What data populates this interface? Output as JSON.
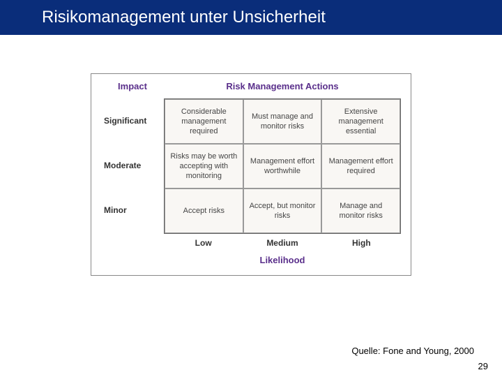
{
  "slide": {
    "title": "Risikomanagement unter Unsicherheit",
    "source": "Quelle: Fone and Young, 2000",
    "page_number": "29",
    "title_bar_bg": "#0a2d7a",
    "title_bar_fg": "#ffffff"
  },
  "matrix": {
    "type": "grid-3x3",
    "impact_label": "Impact",
    "actions_label": "Risk Management Actions",
    "likelihood_label": "Likelihood",
    "header_color": "#5a2f8b",
    "cell_bg": "#f9f7f4",
    "cell_border": "#999999",
    "cell_text_color": "#444444",
    "cell_fontsize": 11,
    "row_labels": [
      "Significant",
      "Moderate",
      "Minor"
    ],
    "col_labels": [
      "Low",
      "Medium",
      "High"
    ],
    "cells": [
      [
        "Considerable management required",
        "Must manage and monitor risks",
        "Extensive management essential"
      ],
      [
        "Risks may be worth accepting with monitoring",
        "Management effort worthwhile",
        "Management effort required"
      ],
      [
        "Accept risks",
        "Accept, but monitor risks",
        "Manage and monitor risks"
      ]
    ]
  }
}
